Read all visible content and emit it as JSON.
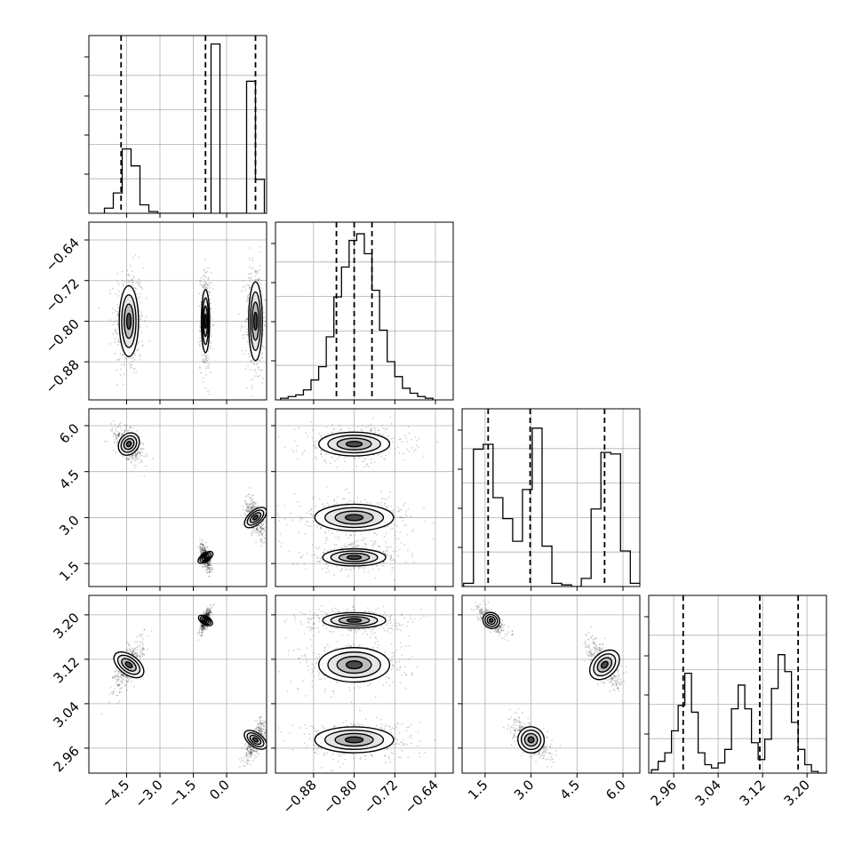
{
  "chart_data": {
    "type": "corner",
    "grid": true,
    "params": [
      {
        "range": [
          -6.2,
          1.8
        ],
        "ticks": [
          -4.5,
          -3.0,
          -1.5,
          0.0
        ],
        "tick_labels": [
          "−4.5",
          "−3.0",
          "−1.5",
          "0.0"
        ],
        "hist": {
          "bins": [
            -5.5,
            -5.1,
            -4.7,
            -4.3,
            -3.9,
            -3.5,
            -3.1,
            -2.7,
            -2.3,
            -1.9,
            -1.5,
            -1.1,
            -0.7,
            -0.3,
            0.1,
            0.5,
            0.9,
            1.3
          ],
          "counts": [
            0.03,
            0.12,
            0.38,
            0.28,
            0.05,
            0.01,
            0,
            0,
            0,
            0,
            0,
            0.0,
            1.0,
            0.0,
            0,
            0,
            0.78,
            0.2
          ],
          "ymax": 1.05
        },
        "quantiles": [
          -4.75,
          -0.95,
          1.3
        ]
      },
      {
        "range": [
          -0.955,
          -0.605
        ],
        "ticks": [
          -0.88,
          -0.8,
          -0.72,
          -0.64
        ],
        "tick_labels": [
          "−0.88",
          "−0.80",
          "−0.72",
          "−0.64"
        ],
        "hist": {
          "bins": [
            -0.945,
            -0.93,
            -0.915,
            -0.9,
            -0.885,
            -0.87,
            -0.855,
            -0.84,
            -0.825,
            -0.81,
            -0.795,
            -0.78,
            -0.765,
            -0.75,
            -0.735,
            -0.72,
            -0.705,
            -0.69,
            -0.675,
            -0.66
          ],
          "counts": [
            0.01,
            0.02,
            0.03,
            0.06,
            0.12,
            0.2,
            0.38,
            0.62,
            0.8,
            0.96,
            1.0,
            0.88,
            0.66,
            0.42,
            0.23,
            0.14,
            0.07,
            0.04,
            0.02,
            0.01
          ],
          "ymax": 1.07
        },
        "quantiles": [
          -0.835,
          -0.8,
          -0.765
        ]
      },
      {
        "range": [
          0.75,
          6.55
        ],
        "ticks": [
          1.5,
          3.0,
          4.5,
          6.0
        ],
        "tick_labels": [
          "1.5",
          "3.0",
          "4.5",
          "6.0"
        ],
        "hist": {
          "bins": [
            0.8,
            1.12,
            1.44,
            1.76,
            2.08,
            2.4,
            2.72,
            3.04,
            3.36,
            3.68,
            4.0,
            4.32,
            4.64,
            4.96,
            5.28,
            5.6,
            5.92,
            6.24
          ],
          "counts": [
            0.02,
            0.85,
            0.88,
            0.55,
            0.42,
            0.28,
            0.6,
            0.98,
            0.25,
            0.02,
            0.01,
            0,
            0.05,
            0.48,
            0.83,
            0.82,
            0.22,
            0.02
          ],
          "ymax": 1.1
        },
        "quantiles": [
          1.6,
          2.97,
          5.4
        ]
      },
      {
        "range": [
          2.915,
          3.235
        ],
        "ticks": [
          2.96,
          3.04,
          3.12,
          3.2
        ],
        "tick_labels": [
          "2.96",
          "3.04",
          "3.12",
          "3.20"
        ],
        "hist": {
          "bins": [
            2.92,
            2.932,
            2.944,
            2.956,
            2.968,
            2.98,
            2.992,
            3.004,
            3.016,
            3.028,
            3.04,
            3.052,
            3.064,
            3.076,
            3.088,
            3.1,
            3.112,
            3.124,
            3.136,
            3.148,
            3.16,
            3.172,
            3.184,
            3.196,
            3.208,
            3.22
          ],
          "counts": [
            0.02,
            0.07,
            0.12,
            0.25,
            0.4,
            0.59,
            0.36,
            0.12,
            0.05,
            0.03,
            0.06,
            0.14,
            0.38,
            0.52,
            0.38,
            0.18,
            0.08,
            0.2,
            0.5,
            0.7,
            0.6,
            0.3,
            0.14,
            0.05,
            0.01,
            0.0
          ],
          "ymax": 1.05
        },
        "quantiles": [
          2.977,
          3.115,
          3.184
        ]
      }
    ],
    "clusters": [
      [
        -4.4,
        -0.8,
        5.4,
        3.11
      ],
      [
        -0.95,
        -0.8,
        1.7,
        3.19
      ],
      [
        1.3,
        -0.8,
        3.0,
        2.975
      ]
    ],
    "cluster_spread": [
      [
        0.28,
        0.045,
        0.25,
        0.02
      ],
      [
        0.1,
        0.04,
        0.18,
        0.009
      ],
      [
        0.2,
        0.05,
        0.28,
        0.015
      ]
    ]
  }
}
